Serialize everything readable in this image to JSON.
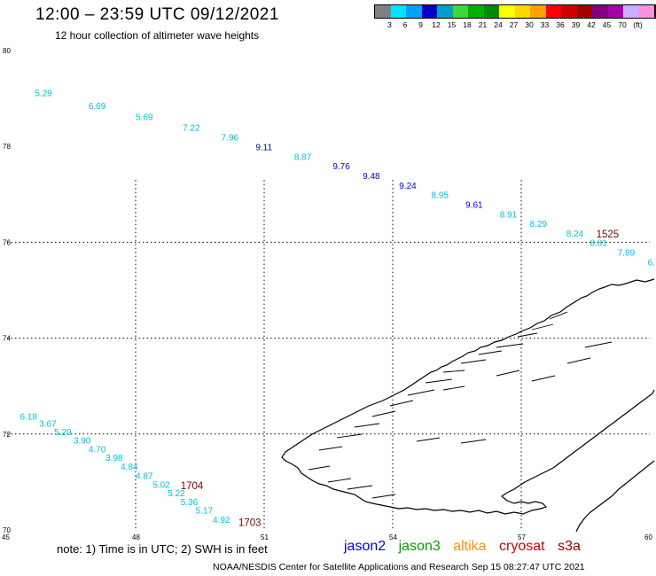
{
  "header": {
    "title": "12:00 – 23:59 UTC 09/12/2021",
    "subtitle": "12 hour collection of altimeter wave heights"
  },
  "legend": {
    "colors": [
      "#808080",
      "#00e5ff",
      "#00a2ff",
      "#0000c8",
      "#00a0c8",
      "#3fd63f",
      "#00b000",
      "#008a00",
      "#ffff00",
      "#ffd800",
      "#ffa000",
      "#ff0000",
      "#d00000",
      "#a00000",
      "#800080",
      "#a800a8",
      "#c8b0ff",
      "#ff90e0",
      "#000000"
    ],
    "labels": [
      "3",
      "6",
      "9",
      "12",
      "15",
      "18",
      "21",
      "24",
      "27",
      "30",
      "33",
      "36",
      "39",
      "42",
      "45",
      "70",
      "(ft)"
    ]
  },
  "axes": {
    "y_ticks": [
      "80",
      "78",
      "76",
      "74",
      "72",
      "70"
    ],
    "x_ticks": [
      "45",
      "48",
      "51",
      "54",
      "57",
      "60"
    ]
  },
  "wave_heights": [
    {
      "text": "5.29",
      "color": "#00c0e0",
      "lon": 45.65,
      "lat": 79.05
    },
    {
      "text": "6.69",
      "color": "#00c0e0",
      "lon": 46.9,
      "lat": 78.78
    },
    {
      "text": "5.69",
      "color": "#00c0e0",
      "lon": 48.0,
      "lat": 78.55
    },
    {
      "text": "7.22",
      "color": "#00c0e0",
      "lon": 49.1,
      "lat": 78.33
    },
    {
      "text": "7.96",
      "color": "#00c0e0",
      "lon": 50.0,
      "lat": 78.12
    },
    {
      "text": "9.11",
      "color": "#0000c8",
      "lon": 50.8,
      "lat": 77.92
    },
    {
      "text": "8.87",
      "color": "#00c0e0",
      "lon": 51.7,
      "lat": 77.72
    },
    {
      "text": "9.76",
      "color": "#0000c8",
      "lon": 52.6,
      "lat": 77.52
    },
    {
      "text": "9.48",
      "color": "#0000c8",
      "lon": 53.3,
      "lat": 77.32
    },
    {
      "text": "9.24",
      "color": "#0000c8",
      "lon": 54.15,
      "lat": 77.12
    },
    {
      "text": "8.95",
      "color": "#00c0e0",
      "lon": 54.9,
      "lat": 76.92
    },
    {
      "text": "9.61",
      "color": "#0000c8",
      "lon": 55.7,
      "lat": 76.72
    },
    {
      "text": "8.91",
      "color": "#00c0e0",
      "lon": 56.5,
      "lat": 76.52
    },
    {
      "text": "8.29",
      "color": "#00c0e0",
      "lon": 57.2,
      "lat": 76.32
    },
    {
      "text": "8.24",
      "color": "#00c0e0",
      "lon": 58.05,
      "lat": 76.12
    },
    {
      "text": "8.81",
      "color": "#00c0e0",
      "lon": 58.6,
      "lat": 75.92
    },
    {
      "text": "7.89",
      "color": "#00c0e0",
      "lon": 59.25,
      "lat": 75.72
    },
    {
      "text": "6.",
      "color": "#00c0e0",
      "lon": 59.95,
      "lat": 75.52
    },
    {
      "text": "6.18",
      "color": "#00c0e0",
      "lon": 45.3,
      "lat": 72.3
    },
    {
      "text": "3.67",
      "color": "#00c0e0",
      "lon": 45.75,
      "lat": 72.15
    },
    {
      "text": "5.29",
      "color": "#00c0e0",
      "lon": 46.1,
      "lat": 71.98
    },
    {
      "text": "3.90",
      "color": "#00c0e0",
      "lon": 46.55,
      "lat": 71.8
    },
    {
      "text": "4.70",
      "color": "#00c0e0",
      "lon": 46.9,
      "lat": 71.62
    },
    {
      "text": "3.98",
      "color": "#00c0e0",
      "lon": 47.3,
      "lat": 71.44
    },
    {
      "text": "4.84",
      "color": "#00c0e0",
      "lon": 47.65,
      "lat": 71.26
    },
    {
      "text": "4.87",
      "color": "#00c0e0",
      "lon": 48.0,
      "lat": 71.06
    },
    {
      "text": "5.02",
      "color": "#00c0e0",
      "lon": 48.4,
      "lat": 70.88
    },
    {
      "text": "5.22",
      "color": "#00c0e0",
      "lon": 48.75,
      "lat": 70.7
    },
    {
      "text": "5.36",
      "color": "#00c0e0",
      "lon": 49.05,
      "lat": 70.52
    },
    {
      "text": "5.17",
      "color": "#00c0e0",
      "lon": 49.4,
      "lat": 70.34
    },
    {
      "text": "4.92",
      "color": "#00c0e0",
      "lon": 49.8,
      "lat": 70.15
    }
  ],
  "time_labels": [
    {
      "text": "1525",
      "lon": 58.75,
      "lat": 76.1
    },
    {
      "text": "1704",
      "lon": 49.05,
      "lat": 70.85
    },
    {
      "text": "1703",
      "lon": 50.4,
      "lat": 70.08
    }
  ],
  "note": "note:  1) Time is in UTC;  2) SWH is in feet",
  "satellites": [
    {
      "name": "jason2",
      "color": "#0000e0"
    },
    {
      "name": "jason3",
      "color": "#00a000"
    },
    {
      "name": "altika",
      "color": "#ff9000"
    },
    {
      "name": "cryosat",
      "color": "#d00000"
    },
    {
      "name": "s3a",
      "color": "#a00000"
    }
  ],
  "footer": "NOAA/NESDIS Center for Satellite Applications and Research    Sep 15 08:27:47 UTC 2021"
}
